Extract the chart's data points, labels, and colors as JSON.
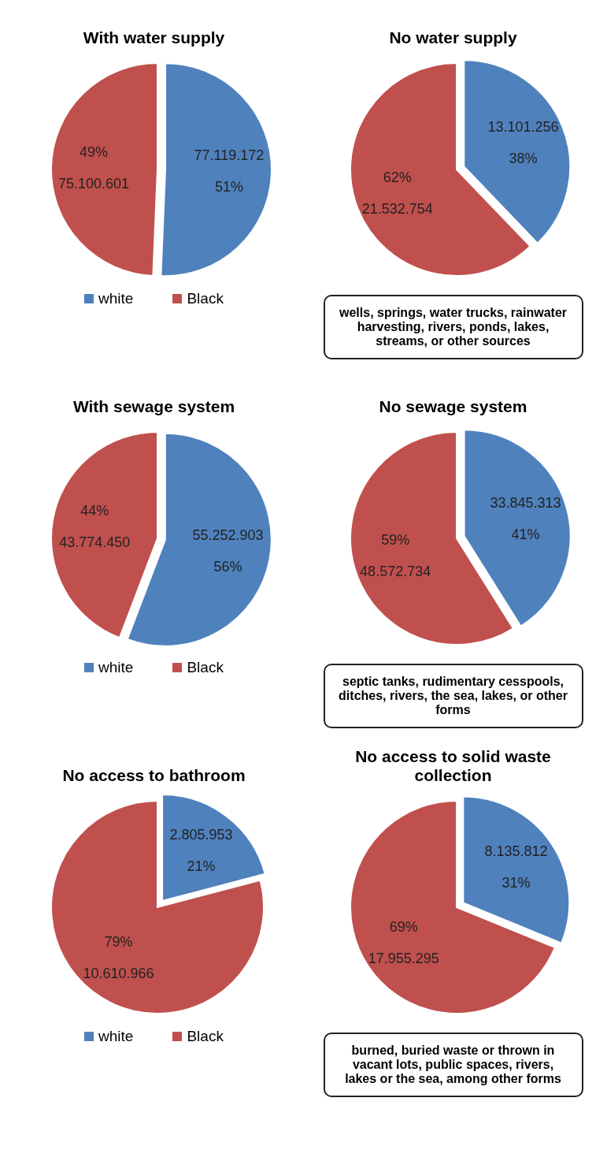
{
  "chart_data": [
    {
      "type": "pie",
      "title": "With water supply",
      "categories": [
        "white",
        "Black"
      ],
      "values": [
        77119172,
        75100601
      ],
      "colors": [
        "#4f81bd",
        "#c0504d"
      ],
      "value_labels": [
        "77.119.172\n51%",
        "49%\n75.100.601"
      ],
      "legend": "bottom"
    },
    {
      "type": "pie",
      "title": "No water supply",
      "categories": [
        null,
        null
      ],
      "values": [
        13101256,
        21532754
      ],
      "colors": [
        "#4f81bd",
        "#c0504d"
      ],
      "value_labels": [
        "13.101.256\n38%",
        "62%\n21.532.754"
      ],
      "annotations": [
        "wells, springs, water trucks, rainwater harvesting, rivers, ponds, lakes, streams, or other sources"
      ]
    },
    {
      "type": "pie",
      "title": "With sewage system",
      "categories": [
        "white",
        "Black"
      ],
      "values": [
        55252903,
        43774450
      ],
      "colors": [
        "#4f81bd",
        "#c0504d"
      ],
      "value_labels": [
        "55.252.903\n56%",
        "44%\n43.774.450"
      ],
      "legend": "bottom"
    },
    {
      "type": "pie",
      "title": "No sewage system",
      "categories": [
        null,
        null
      ],
      "values": [
        33845313,
        48572734
      ],
      "colors": [
        "#4f81bd",
        "#c0504d"
      ],
      "value_labels": [
        "33.845.313\n41%",
        "59%\n48.572.734"
      ],
      "annotations": [
        "septic tanks, rudimentary cesspools, ditches, rivers, the sea, lakes, or other forms"
      ]
    },
    {
      "type": "pie",
      "title": "No access to bathroom",
      "categories": [
        "white",
        "Black"
      ],
      "values": [
        2805953,
        10610966
      ],
      "colors": [
        "#4f81bd",
        "#c0504d"
      ],
      "value_labels": [
        "2.805.953\n21%",
        "79%\n10.610.966"
      ],
      "legend": "bottom"
    },
    {
      "type": "pie",
      "title": "No access to solid waste collection",
      "categories": [
        null,
        null
      ],
      "values": [
        8135812,
        17955295
      ],
      "colors": [
        "#4f81bd",
        "#c0504d"
      ],
      "value_labels": [
        "8.135.812\n31%",
        "69%\n17.955.295"
      ],
      "annotations": [
        "burned, buried waste or thrown in vacant lots, public spaces, rivers, lakes or the sea, among other forms"
      ]
    }
  ]
}
